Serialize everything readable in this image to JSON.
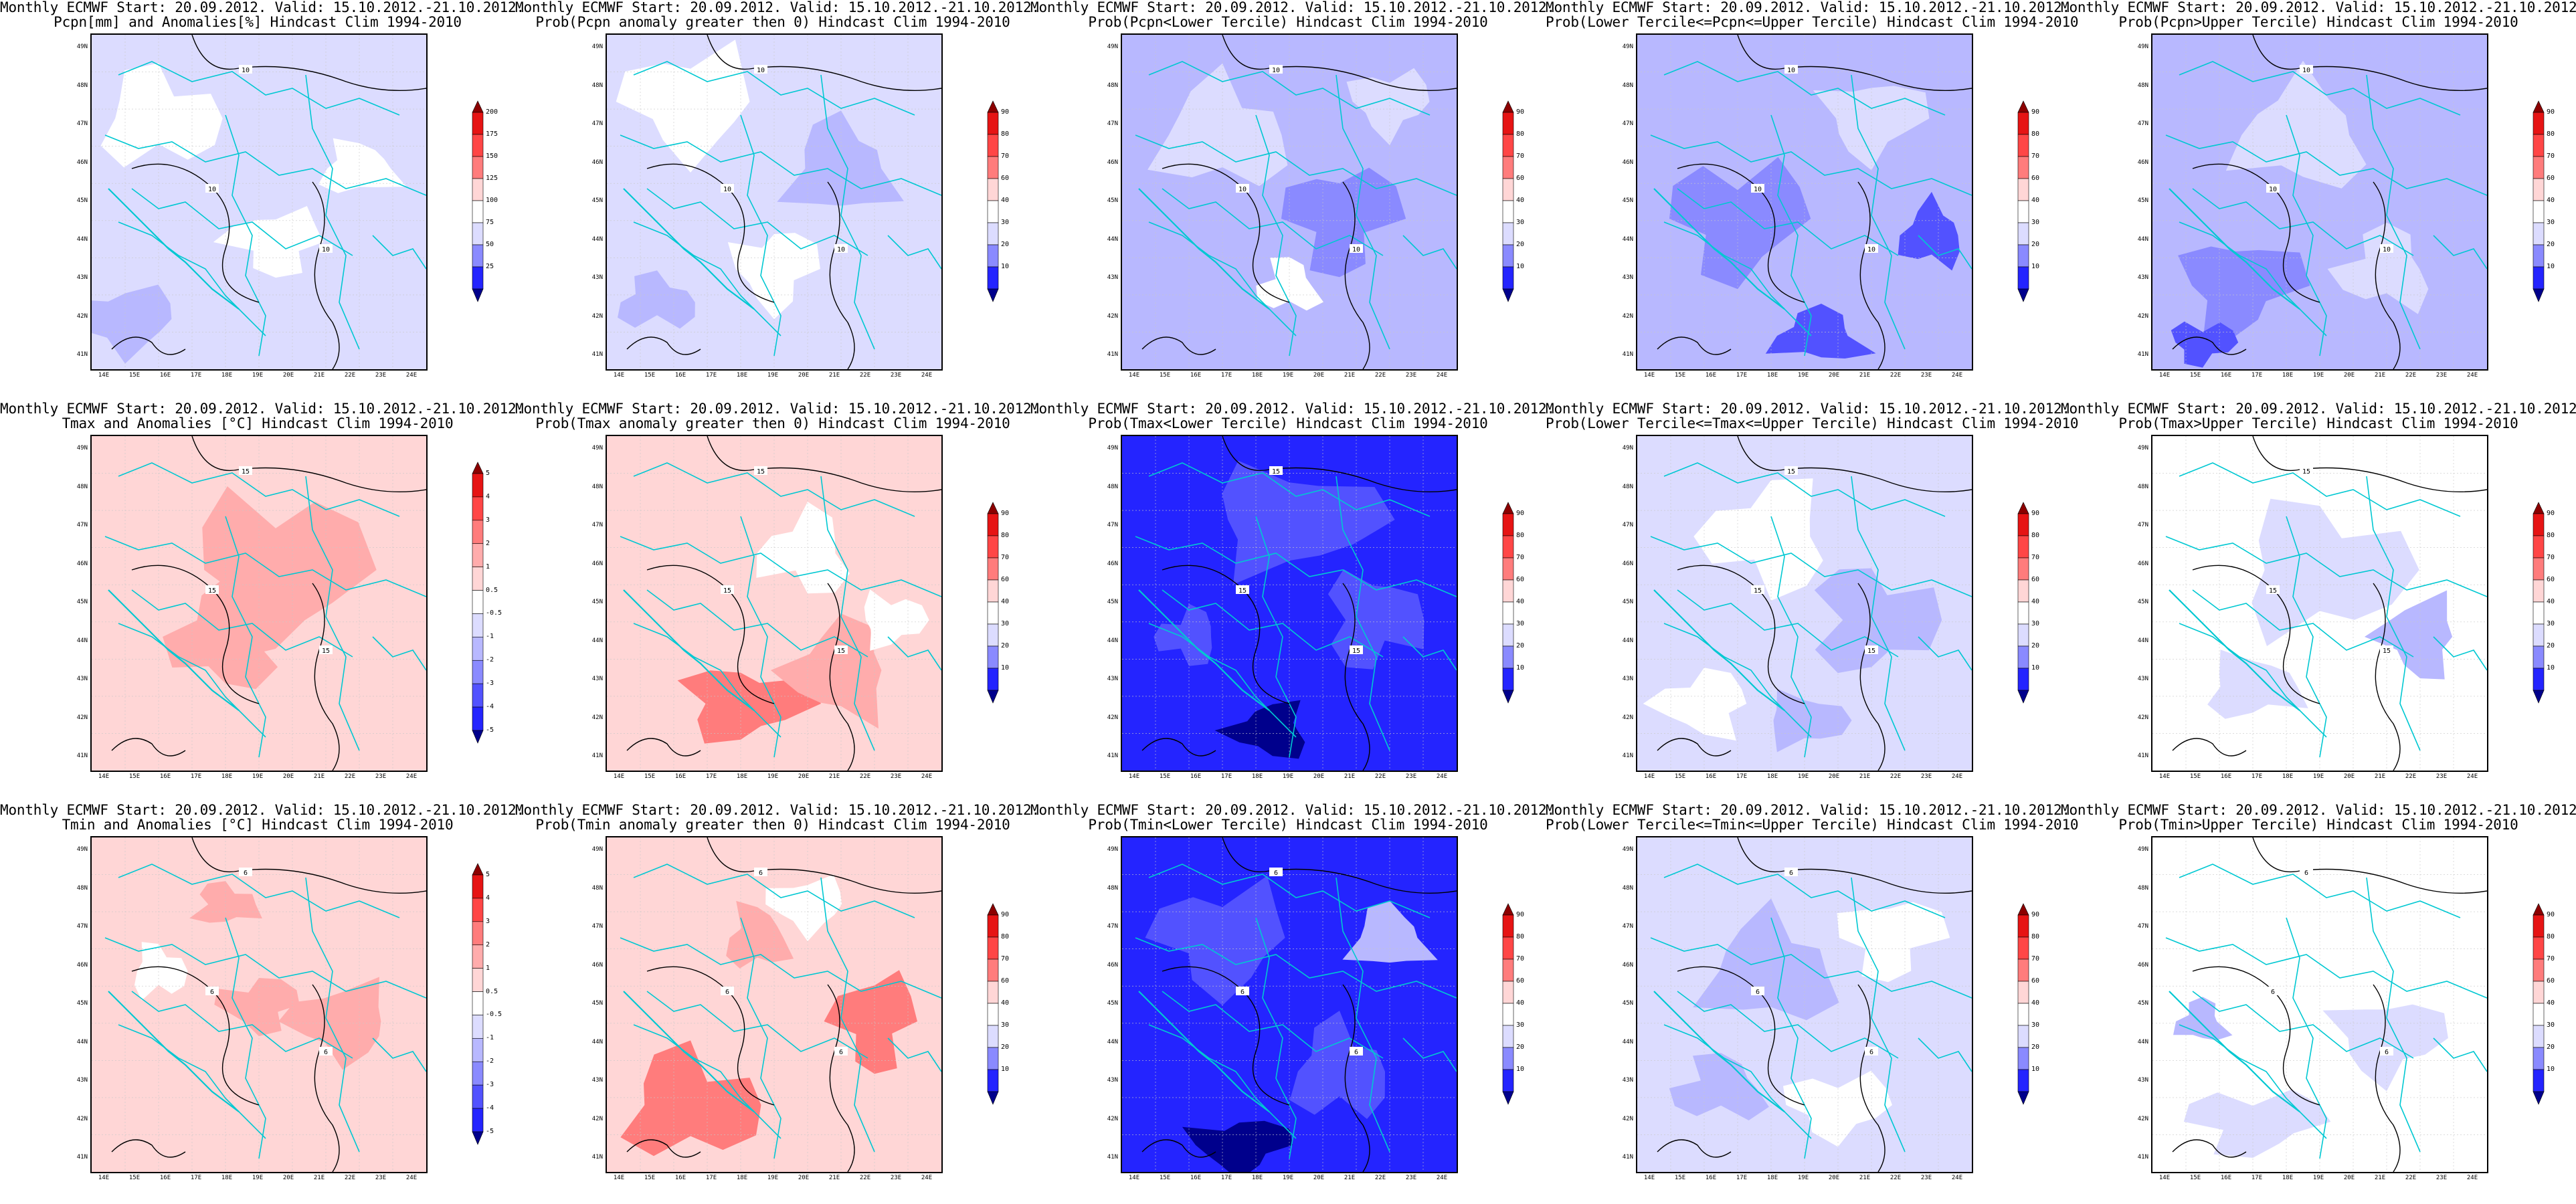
{
  "colors": {
    "b_dark": "#00008c",
    "b5": "#2424ff",
    "b4": "#5252ff",
    "b3": "#8a8aff",
    "b2": "#b8b8ff",
    "b1": "#dcdcff",
    "white": "#ffffff",
    "r1": "#ffd6d6",
    "r2": "#ffacac",
    "r3": "#ff7c7c",
    "r4": "#ff4646",
    "r5": "#e61414",
    "r_dark": "#8c0000",
    "borders": "#00c8d2",
    "contour": "#000000"
  },
  "axes": {
    "lat_labels": [
      "49N",
      "48N",
      "47N",
      "46N",
      "45N",
      "44N",
      "43N",
      "42N",
      "41N"
    ],
    "lon_labels": [
      "14E",
      "15E",
      "16E",
      "17E",
      "18E",
      "19E",
      "20E",
      "21E",
      "22E",
      "23E",
      "24E"
    ]
  },
  "panels": [
    {
      "id": "p1",
      "title1": "Monthly ECMWF Start: 20.09.2012. Valid: 15.10.2012.-21.10.2012.",
      "title2": "Pcpn[mm] and Anomalies[%] Hindcast Clim 1994-2010",
      "levels": [
        "200",
        "175",
        "150",
        "125",
        "100",
        "75",
        "50",
        "25"
      ],
      "scheme": "pcpn",
      "contour": "10"
    },
    {
      "id": "p2",
      "title1": "Monthly ECMWF Start: 20.09.2012. Valid: 15.10.2012.-21.10.2012.",
      "title2": "Prob(Pcpn anomaly greater then 0) Hindcast Clim 1994-2010",
      "levels": [
        "90",
        "80",
        "70",
        "60",
        "40",
        "30",
        "20",
        "10"
      ],
      "scheme": "pcpn_pos",
      "contour": "10"
    },
    {
      "id": "p3",
      "title1": "Monthly ECMWF Start: 20.09.2012. Valid: 15.10.2012.-21.10.2012.",
      "title2": "Prob(Pcpn<Lower Tercile) Hindcast Clim 1994-2010",
      "levels": [
        "90",
        "80",
        "70",
        "60",
        "40",
        "30",
        "20",
        "10"
      ],
      "scheme": "pcpn_low",
      "contour": "10"
    },
    {
      "id": "p4",
      "title1": "Monthly ECMWF Start: 20.09.2012. Valid: 15.10.2012.-21.10.2012.",
      "title2": "Prob(Lower Tercile<=Pcpn<=Upper Tercile) Hindcast Clim 1994-2010",
      "levels": [
        "90",
        "80",
        "70",
        "60",
        "40",
        "30",
        "20",
        "10"
      ],
      "scheme": "pcpn_mid",
      "contour": "10"
    },
    {
      "id": "p5",
      "title1": "Monthly ECMWF Start: 20.09.2012. Valid: 15.10.2012.-21.10.2012.",
      "title2": "Prob(Pcpn>Upper Tercile) Hindcast Clim 1994-2010",
      "levels": [
        "90",
        "80",
        "70",
        "60",
        "40",
        "30",
        "20",
        "10"
      ],
      "scheme": "pcpn_up",
      "contour": "10"
    },
    {
      "id": "p6",
      "title1": "Monthly ECMWF Start: 20.09.2012. Valid: 15.10.2012.-21.10.2012.",
      "title2": "Tmax and Anomalies [°C] Hindcast Clim 1994-2010",
      "levels": [
        "5",
        "4",
        "3",
        "2",
        "1",
        "0.5",
        "-0.5",
        "-1",
        "-2",
        "-3",
        "-4",
        "-5"
      ],
      "scheme": "tmax",
      "contour": "15"
    },
    {
      "id": "p7",
      "title1": "Monthly ECMWF Start: 20.09.2012. Valid: 15.10.2012.-21.10.2012.",
      "title2": "Prob(Tmax anomaly greater then 0) Hindcast Clim 1994-2010",
      "levels": [
        "90",
        "80",
        "70",
        "60",
        "40",
        "30",
        "20",
        "10"
      ],
      "scheme": "tmax_pos",
      "contour": "15"
    },
    {
      "id": "p8",
      "title1": "Monthly ECMWF Start: 20.09.2012. Valid: 15.10.2012.-21.10.2012.",
      "title2": "Prob(Tmax<Lower Tercile) Hindcast Clim 1994-2010",
      "levels": [
        "90",
        "80",
        "70",
        "60",
        "40",
        "30",
        "20",
        "10"
      ],
      "scheme": "tmax_low",
      "contour": "15"
    },
    {
      "id": "p9",
      "title1": "Monthly ECMWF Start: 20.09.2012. Valid: 15.10.2012.-21.10.2012.",
      "title2": "Prob(Lower Tercile<=Tmax<=Upper Tercile) Hindcast Clim 1994-2010",
      "levels": [
        "90",
        "80",
        "70",
        "60",
        "40",
        "30",
        "20",
        "10"
      ],
      "scheme": "tmax_mid",
      "contour": "15"
    },
    {
      "id": "p10",
      "title1": "Monthly ECMWF Start: 20.09.2012. Valid: 15.10.2012.-21.10.2012.",
      "title2": "Prob(Tmax>Upper Tercile) Hindcast Clim 1994-2010",
      "levels": [
        "90",
        "80",
        "70",
        "60",
        "40",
        "30",
        "20",
        "10"
      ],
      "scheme": "tmax_up",
      "contour": "15"
    },
    {
      "id": "p11",
      "title1": "Monthly ECMWF Start: 20.09.2012. Valid: 15.10.2012.-21.10.2012.",
      "title2": "Tmin and Anomalies [°C] Hindcast Clim 1994-2010",
      "levels": [
        "5",
        "4",
        "3",
        "2",
        "1",
        "0.5",
        "-0.5",
        "-1",
        "-2",
        "-3",
        "-4",
        "-5"
      ],
      "scheme": "tmin",
      "contour": "6"
    },
    {
      "id": "p12",
      "title1": "Monthly ECMWF Start: 20.09.2012. Valid: 15.10.2012.-21.10.2012.",
      "title2": "Prob(Tmin anomaly greater then 0) Hindcast Clim 1994-2010",
      "levels": [
        "90",
        "80",
        "70",
        "60",
        "40",
        "30",
        "20",
        "10"
      ],
      "scheme": "tmin_pos",
      "contour": "6"
    },
    {
      "id": "p13",
      "title1": "Monthly ECMWF Start: 20.09.2012. Valid: 15.10.2012.-21.10.2012.",
      "title2": "Prob(Tmin<Lower Tercile) Hindcast Clim 1994-2010",
      "levels": [
        "90",
        "80",
        "70",
        "60",
        "40",
        "30",
        "20",
        "10"
      ],
      "scheme": "tmin_low",
      "contour": "6"
    },
    {
      "id": "p14",
      "title1": "Monthly ECMWF Start: 20.09.2012. Valid: 15.10.2012.-21.10.2012.",
      "title2": "Prob(Lower Tercile<=Tmin<=Upper Tercile) Hindcast Clim 1994-2010",
      "levels": [
        "90",
        "80",
        "70",
        "60",
        "40",
        "30",
        "20",
        "10"
      ],
      "scheme": "tmin_mid",
      "contour": "6"
    },
    {
      "id": "p15",
      "title1": "Monthly ECMWF Start: 20.09.2012. Valid: 15.10.2012.-21.10.2012.",
      "title2": "Prob(Tmin>Upper Tercile) Hindcast Clim 1994-2010",
      "levels": [
        "90",
        "80",
        "70",
        "60",
        "40",
        "30",
        "20",
        "10"
      ],
      "scheme": "tmin_up",
      "contour": "6"
    }
  ]
}
